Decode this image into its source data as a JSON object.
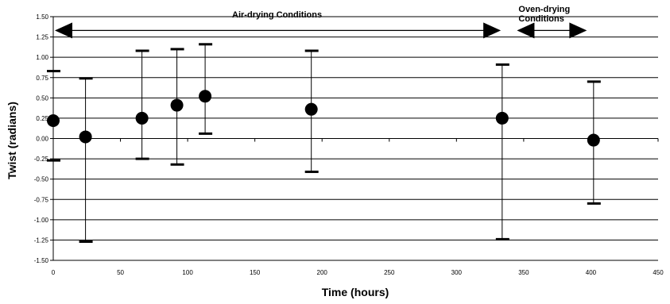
{
  "chart_data": {
    "type": "scatter",
    "xlabel": "Time (hours)",
    "ylabel": "Twist (radians)",
    "xlim": [
      0,
      450
    ],
    "ylim": [
      -1.5,
      1.5
    ],
    "x_ticks": [
      "0",
      "50",
      "100",
      "150",
      "200",
      "250",
      "300",
      "350",
      "400",
      "450"
    ],
    "y_ticks": [
      "1.50",
      "1.25",
      "1.00",
      "0.75",
      "0.50",
      "0.25",
      "0.00",
      "-0.25",
      "-0.50",
      "-0.75",
      "-1.00",
      "-1.25",
      "-1.50"
    ],
    "grid": "horizontal",
    "points": [
      {
        "x": 0,
        "y": 0.22,
        "low": -0.27,
        "high": 0.83
      },
      {
        "x": 24,
        "y": 0.02,
        "low": -1.27,
        "high": 0.74
      },
      {
        "x": 66,
        "y": 0.25,
        "low": -0.25,
        "high": 1.08
      },
      {
        "x": 92,
        "y": 0.41,
        "low": -0.32,
        "high": 1.1
      },
      {
        "x": 113,
        "y": 0.52,
        "low": 0.06,
        "high": 1.16
      },
      {
        "x": 192,
        "y": 0.36,
        "low": -0.41,
        "high": 1.08
      },
      {
        "x": 334,
        "y": 0.25,
        "low": -1.24,
        "high": 0.91
      },
      {
        "x": 402,
        "y": -0.02,
        "low": -0.8,
        "high": 0.7
      }
    ],
    "annotations": [
      {
        "text": "Air-drying Conditions",
        "x_from": 0,
        "x_to": 333,
        "y": 1.33
      },
      {
        "text_lines": [
          "Oven-drying",
          "Conditions"
        ],
        "x_from": 345,
        "x_to": 397,
        "y": 1.33
      }
    ]
  },
  "colors": {
    "background": "#ffffff",
    "ink": "#000000"
  }
}
